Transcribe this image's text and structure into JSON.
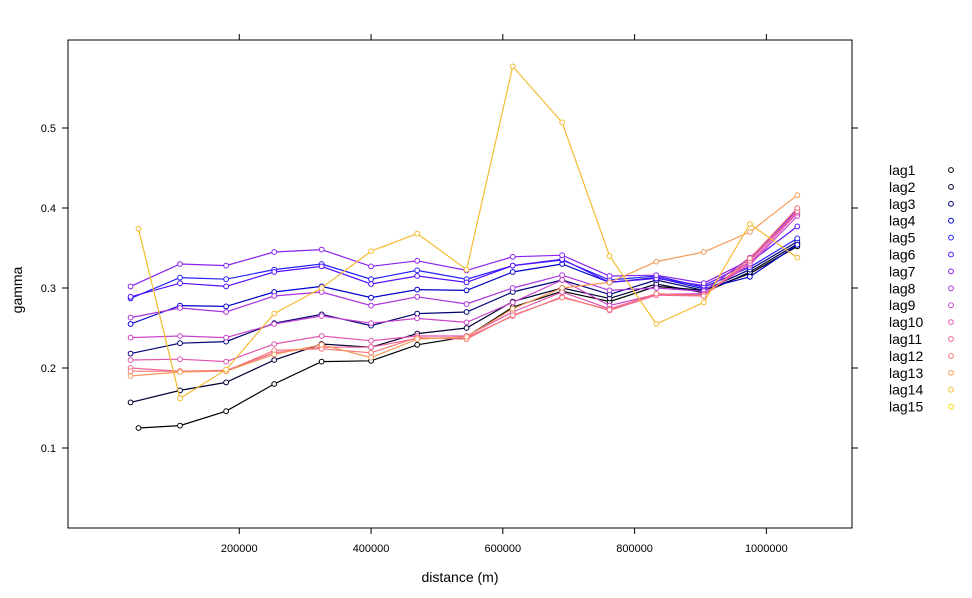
{
  "chart_data": {
    "type": "line",
    "xlabel": "distance (m)",
    "ylabel": "gamma",
    "xlim": [
      -60000,
      1130000
    ],
    "ylim": [
      0,
      0.61
    ],
    "x_ticks": [
      200000,
      400000,
      600000,
      800000,
      1000000
    ],
    "x_tick_labels": [
      "200000",
      "400000",
      "600000",
      "800000",
      "1000000"
    ],
    "y_ticks": [
      0.1,
      0.2,
      0.3,
      0.4,
      0.5
    ],
    "y_tick_labels": [
      "0.1",
      "0.2",
      "0.3",
      "0.4",
      "0.5"
    ],
    "legend_position": "right",
    "markers": "open-circle",
    "series": [
      {
        "name": "lag1",
        "color": "#000000",
        "x": [
          47000,
          110000,
          180000,
          253000,
          325000,
          400000,
          470000,
          545000,
          615000,
          690000,
          762000,
          833000,
          905000,
          975000,
          1047000
        ],
        "y": [
          0.125,
          0.128,
          0.146,
          0.18,
          0.208,
          0.209,
          0.229,
          0.239,
          0.276,
          0.296,
          0.283,
          0.302,
          0.297,
          0.318,
          0.352
        ]
      },
      {
        "name": "lag2",
        "color": "#000033",
        "x": [
          35000,
          110000,
          180000,
          253000,
          325000,
          400000,
          470000,
          545000,
          615000,
          690000,
          762000,
          833000,
          905000,
          975000,
          1047000
        ],
        "y": [
          0.157,
          0.172,
          0.182,
          0.21,
          0.23,
          0.226,
          0.243,
          0.25,
          0.283,
          0.3,
          0.287,
          0.305,
          0.294,
          0.32,
          0.355
        ]
      },
      {
        "name": "lag3",
        "color": "#000077",
        "x": [
          35000,
          110000,
          180000,
          253000,
          325000,
          400000,
          470000,
          545000,
          615000,
          690000,
          762000,
          833000,
          905000,
          975000,
          1047000
        ],
        "y": [
          0.218,
          0.231,
          0.233,
          0.256,
          0.267,
          0.253,
          0.268,
          0.27,
          0.295,
          0.31,
          0.292,
          0.31,
          0.297,
          0.323,
          0.358
        ]
      },
      {
        "name": "lag4",
        "color": "#0000cc",
        "x": [
          35000,
          110000,
          180000,
          253000,
          325000,
          400000,
          470000,
          545000,
          615000,
          690000,
          762000,
          833000,
          905000,
          975000,
          1047000
        ],
        "y": [
          0.255,
          0.278,
          0.277,
          0.295,
          0.302,
          0.288,
          0.298,
          0.297,
          0.32,
          0.33,
          0.307,
          0.313,
          0.299,
          0.314,
          0.354
        ]
      },
      {
        "name": "lag5",
        "color": "#2222ff",
        "x": [
          35000,
          110000,
          180000,
          253000,
          325000,
          400000,
          470000,
          545000,
          615000,
          690000,
          762000,
          833000,
          905000,
          975000,
          1047000
        ],
        "y": [
          0.287,
          0.313,
          0.311,
          0.323,
          0.33,
          0.311,
          0.322,
          0.311,
          0.328,
          0.335,
          0.31,
          0.315,
          0.301,
          0.326,
          0.362
        ]
      },
      {
        "name": "lag6",
        "color": "#5511ff",
        "x": [
          35000,
          110000,
          180000,
          253000,
          325000,
          400000,
          470000,
          545000,
          615000,
          690000,
          762000,
          833000,
          905000,
          975000,
          1047000
        ],
        "y": [
          0.289,
          0.306,
          0.302,
          0.32,
          0.327,
          0.305,
          0.315,
          0.307,
          0.328,
          0.336,
          0.307,
          0.312,
          0.303,
          0.332,
          0.377
        ]
      },
      {
        "name": "lag7",
        "color": "#8822ee",
        "x": [
          35000,
          110000,
          180000,
          253000,
          325000,
          400000,
          470000,
          545000,
          615000,
          690000,
          762000,
          833000,
          905000,
          975000,
          1047000
        ],
        "y": [
          0.302,
          0.33,
          0.328,
          0.345,
          0.348,
          0.327,
          0.334,
          0.322,
          0.339,
          0.341,
          0.315,
          0.316,
          0.306,
          0.335,
          0.398
        ]
      },
      {
        "name": "lag8",
        "color": "#aa33dd",
        "x": [
          35000,
          110000,
          180000,
          253000,
          325000,
          400000,
          470000,
          545000,
          615000,
          690000,
          762000,
          833000,
          905000,
          975000,
          1047000
        ],
        "y": [
          0.263,
          0.275,
          0.27,
          0.29,
          0.295,
          0.278,
          0.289,
          0.28,
          0.3,
          0.316,
          0.297,
          0.3,
          0.296,
          0.338,
          0.393
        ]
      },
      {
        "name": "lag9",
        "color": "#cc44cc",
        "x": [
          35000,
          110000,
          180000,
          253000,
          325000,
          400000,
          470000,
          545000,
          615000,
          690000,
          762000,
          833000,
          905000,
          975000,
          1047000
        ],
        "y": [
          0.238,
          0.24,
          0.238,
          0.255,
          0.265,
          0.256,
          0.262,
          0.257,
          0.282,
          0.31,
          0.278,
          0.292,
          0.293,
          0.329,
          0.39
        ]
      },
      {
        "name": "lag10",
        "color": "#e055b0",
        "x": [
          35000,
          110000,
          180000,
          253000,
          325000,
          400000,
          470000,
          545000,
          615000,
          690000,
          762000,
          833000,
          905000,
          975000,
          1047000
        ],
        "y": [
          0.21,
          0.211,
          0.208,
          0.23,
          0.24,
          0.234,
          0.24,
          0.24,
          0.27,
          0.295,
          0.274,
          0.292,
          0.292,
          0.331,
          0.394
        ]
      },
      {
        "name": "lag11",
        "color": "#f06699",
        "x": [
          35000,
          110000,
          180000,
          253000,
          325000,
          400000,
          470000,
          545000,
          615000,
          690000,
          762000,
          833000,
          905000,
          975000,
          1047000
        ],
        "y": [
          0.2,
          0.196,
          0.197,
          0.219,
          0.226,
          0.226,
          0.237,
          0.238,
          0.265,
          0.289,
          0.272,
          0.291,
          0.29,
          0.334,
          0.396
        ]
      },
      {
        "name": "lag12",
        "color": "#f47777",
        "x": [
          35000,
          110000,
          180000,
          253000,
          325000,
          400000,
          470000,
          545000,
          615000,
          690000,
          762000,
          833000,
          905000,
          975000,
          1047000
        ],
        "y": [
          0.196,
          0.196,
          0.196,
          0.222,
          0.224,
          0.219,
          0.238,
          0.236,
          0.266,
          0.288,
          0.273,
          0.293,
          0.29,
          0.337,
          0.4
        ]
      },
      {
        "name": "lag13",
        "color": "#f59955",
        "x": [
          35000,
          110000,
          180000,
          253000,
          325000,
          400000,
          470000,
          545000,
          615000,
          690000,
          762000,
          833000,
          905000,
          975000,
          1047000
        ],
        "y": [
          0.19,
          0.195,
          0.196,
          0.217,
          0.229,
          0.213,
          0.236,
          0.239,
          0.274,
          0.3,
          0.307,
          0.333,
          0.345,
          0.37,
          0.416
        ]
      },
      {
        "name": "lag14",
        "color": "#f5bb33",
        "x": [
          47000,
          110000,
          180000,
          253000,
          325000,
          400000,
          470000,
          545000,
          615000,
          690000,
          762000,
          833000,
          905000,
          975000,
          1047000
        ],
        "y": [
          0.374,
          0.162,
          0.198,
          0.268,
          0.3,
          0.346,
          0.368,
          0.323,
          0.577,
          0.507,
          0.34,
          0.255,
          0.282,
          0.38,
          0.338
        ]
      },
      {
        "name": "lag15",
        "color": "#f5dd11",
        "x": [],
        "y": []
      }
    ]
  }
}
